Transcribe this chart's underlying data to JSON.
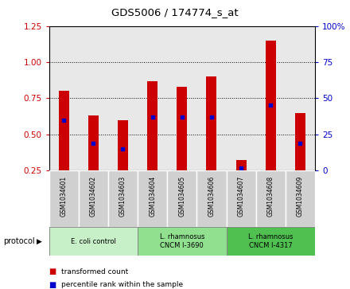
{
  "title": "GDS5006 / 174774_s_at",
  "samples": [
    "GSM1034601",
    "GSM1034602",
    "GSM1034603",
    "GSM1034604",
    "GSM1034605",
    "GSM1034606",
    "GSM1034607",
    "GSM1034608",
    "GSM1034609"
  ],
  "transformed_counts": [
    0.8,
    0.63,
    0.6,
    0.87,
    0.83,
    0.9,
    0.32,
    1.15,
    0.65
  ],
  "percentile_ranks": [
    0.6,
    0.44,
    0.4,
    0.62,
    0.62,
    0.62,
    0.27,
    0.7,
    0.44
  ],
  "ylim_left": [
    0.25,
    1.25
  ],
  "ylim_right": [
    0,
    100
  ],
  "yticks_left": [
    0.25,
    0.5,
    0.75,
    1.0,
    1.25
  ],
  "yticks_right": [
    0,
    25,
    50,
    75,
    100
  ],
  "bar_color": "#cc0000",
  "dot_color": "#0000cc",
  "protocols": [
    {
      "label": "E. coli control",
      "start": 0,
      "end": 3,
      "color": "#c8f0c8"
    },
    {
      "label": "L. rhamnosus\nCNCM I-3690",
      "start": 3,
      "end": 6,
      "color": "#90e090"
    },
    {
      "label": "L. rhamnosus\nCNCM I-4317",
      "start": 6,
      "end": 9,
      "color": "#50c050"
    }
  ],
  "legend_items": [
    {
      "label": "transformed count",
      "color": "#cc0000"
    },
    {
      "label": "percentile rank within the sample",
      "color": "#0000cc"
    }
  ],
  "background_color": "#ffffff",
  "plot_bg_color": "#e8e8e8",
  "grid_color": "#000000",
  "bar_width": 0.35,
  "sample_box_color": "#d0d0d0",
  "left_axis_color": "#cc0000",
  "right_axis_color": "#0000cc"
}
